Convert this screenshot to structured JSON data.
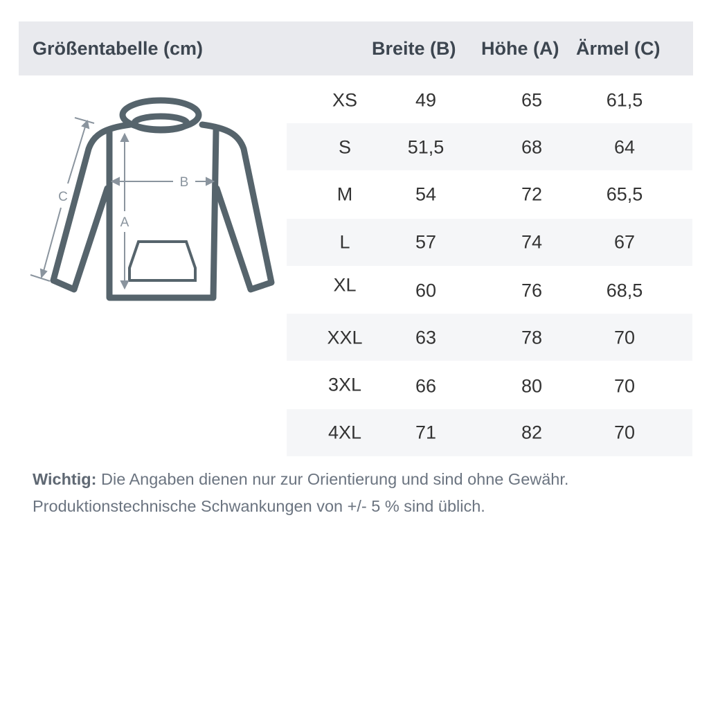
{
  "header": {
    "title": "Größentabelle (cm)",
    "columns": [
      "Breite (B)",
      "Höhe (A)",
      "Ärmel (C)"
    ]
  },
  "diagram": {
    "labels": {
      "a": "A",
      "b": "B",
      "c": "C"
    },
    "line_color": "#56646c",
    "arrow_color": "#8a949e"
  },
  "table": {
    "rows": [
      {
        "size": "XS",
        "breite": "49",
        "hoehe": "65",
        "aermel": "61,5"
      },
      {
        "size": "S",
        "breite": "51,5",
        "hoehe": "68",
        "aermel": "64"
      },
      {
        "size": "M",
        "breite": "54",
        "hoehe": "72",
        "aermel": "65,5"
      },
      {
        "size": "L",
        "breite": "57",
        "hoehe": "74",
        "aermel": "67"
      },
      {
        "size": "XL",
        "breite": "60",
        "hoehe": "76",
        "aermel": "68,5"
      },
      {
        "size": "XXL",
        "breite": "63",
        "hoehe": "78",
        "aermel": "70"
      },
      {
        "size": "3XL",
        "breite": "66",
        "hoehe": "80",
        "aermel": "70"
      },
      {
        "size": "4XL",
        "breite": "71",
        "hoehe": "82",
        "aermel": "70"
      }
    ]
  },
  "note": {
    "label": "Wichtig:",
    "line1": " Die Angaben dienen nur zur Orientierung und sind ohne Gewähr.",
    "line2": "Produktionstechnische Schwankungen von +/- 5 % sind üblich."
  }
}
